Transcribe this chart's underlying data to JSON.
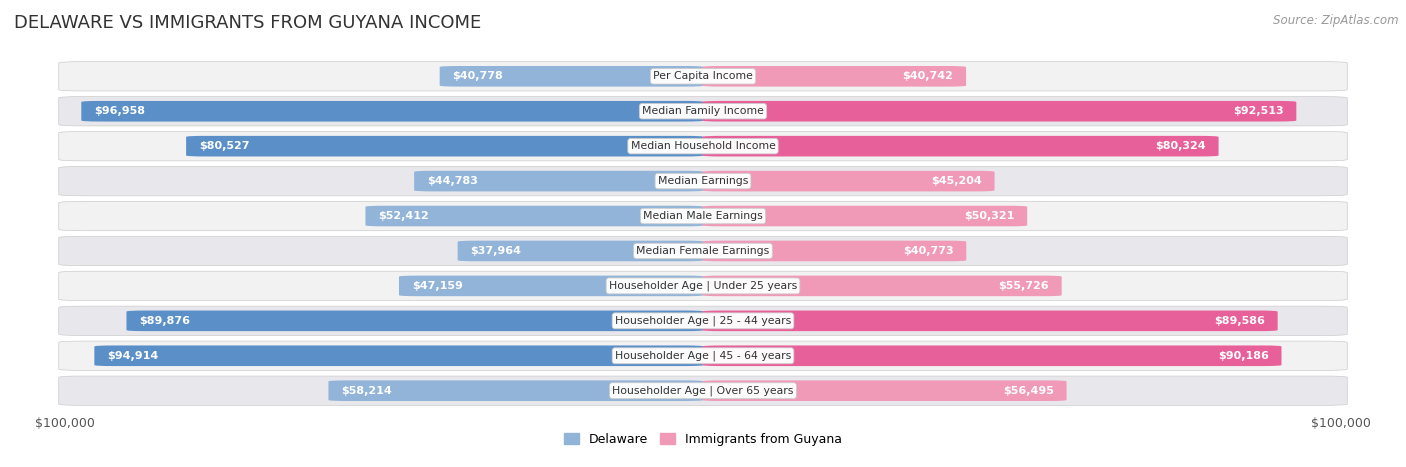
{
  "title": "DELAWARE VS IMMIGRANTS FROM GUYANA INCOME",
  "source": "Source: ZipAtlas.com",
  "categories": [
    "Per Capita Income",
    "Median Family Income",
    "Median Household Income",
    "Median Earnings",
    "Median Male Earnings",
    "Median Female Earnings",
    "Householder Age | Under 25 years",
    "Householder Age | 25 - 44 years",
    "Householder Age | 45 - 64 years",
    "Householder Age | Over 65 years"
  ],
  "delaware_values": [
    40778,
    96958,
    80527,
    44783,
    52412,
    37964,
    47159,
    89876,
    94914,
    58214
  ],
  "guyana_values": [
    40742,
    92513,
    80324,
    45204,
    50321,
    40773,
    55726,
    89586,
    90186,
    56495
  ],
  "delaware_labels": [
    "$40,778",
    "$96,958",
    "$80,527",
    "$44,783",
    "$52,412",
    "$37,964",
    "$47,159",
    "$89,876",
    "$94,914",
    "$58,214"
  ],
  "guyana_labels": [
    "$40,742",
    "$92,513",
    "$80,324",
    "$45,204",
    "$50,321",
    "$40,773",
    "$55,726",
    "$89,586",
    "$90,186",
    "$56,495"
  ],
  "delaware_color": "#92b4d8",
  "guyana_color": "#f09ab8",
  "delaware_color_dark": "#5b8fc8",
  "guyana_color_dark": "#e8609a",
  "max_value": 100000,
  "label_legend_delaware": "Delaware",
  "label_legend_guyana": "Immigrants from Guyana",
  "xlabel_left": "$100,000",
  "xlabel_right": "$100,000",
  "inside_threshold": 0.3,
  "title_fontsize": 13,
  "label_fontsize": 8,
  "cat_fontsize": 7.8,
  "source_fontsize": 8.5,
  "legend_fontsize": 9,
  "axis_fontsize": 9
}
